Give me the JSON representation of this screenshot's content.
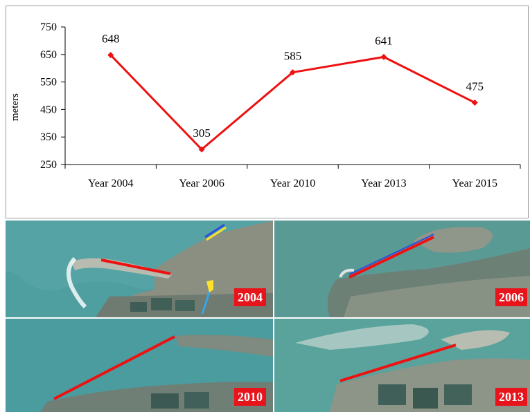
{
  "chart_data": {
    "type": "line",
    "title": "",
    "xlabel": "",
    "ylabel": "meters",
    "categories": [
      "Year 2004",
      "Year 2006",
      "Year 2010",
      "Year 2013",
      "Year 2015"
    ],
    "values": [
      648,
      305,
      585,
      641,
      475
    ],
    "ylim": [
      250,
      750
    ],
    "yticks": [
      250,
      350,
      450,
      550,
      650,
      750
    ],
    "grid": false,
    "legend": "none",
    "line_color": "#ee1111",
    "marker": "diamond"
  },
  "photos": [
    {
      "year_label": "2004",
      "colors": {
        "sea": "#4f9ea0",
        "land": "#8a8f82"
      }
    },
    {
      "year_label": "2006",
      "colors": {
        "sea": "#5a9a94",
        "land": "#8f968a"
      }
    },
    {
      "year_label": "2010",
      "colors": {
        "sea": "#4a9c9e",
        "land": "#7f8a80"
      }
    },
    {
      "year_label": "2013",
      "colors": {
        "sea": "#5aa29c",
        "land": "#8d9488"
      }
    }
  ],
  "measure_line_color": "#ee1111",
  "badge_color": "#e8141b"
}
